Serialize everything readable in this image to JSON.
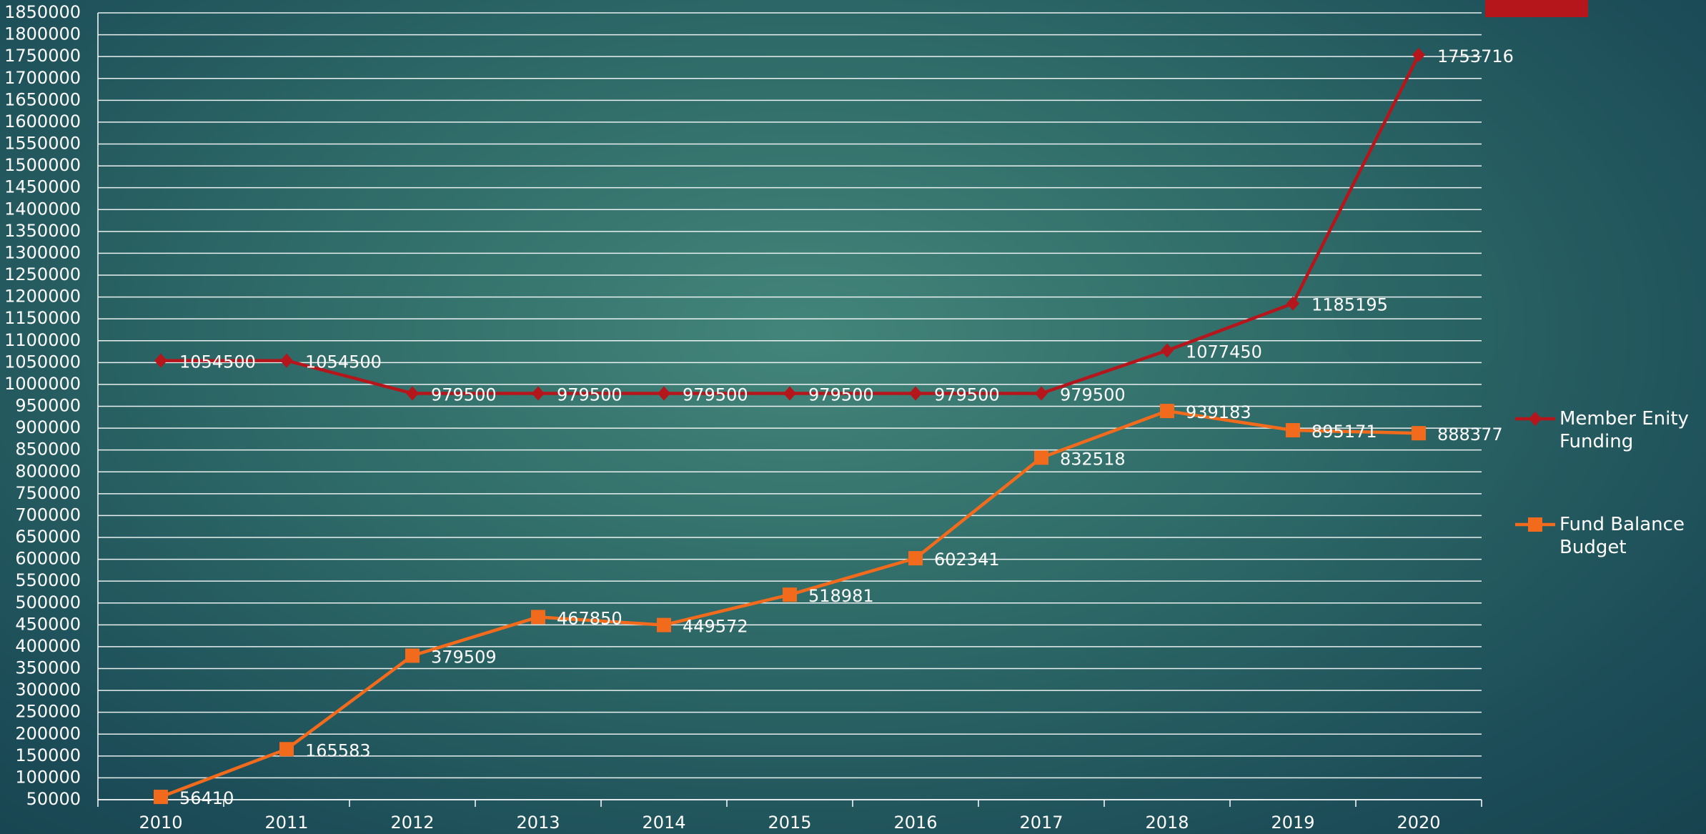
{
  "chart_data": {
    "type": "line",
    "categories": [
      "2010",
      "2011",
      "2012",
      "2013",
      "2014",
      "2015",
      "2016",
      "2017",
      "2018",
      "2019",
      "2020"
    ],
    "series": [
      {
        "name": "Member Enity Funding",
        "color": "#b5161c",
        "marker": "diamond",
        "values": [
          1054500,
          1054500,
          979500,
          979500,
          979500,
          979500,
          979500,
          979500,
          1077450,
          1185195,
          1753716
        ]
      },
      {
        "name": "Fund Balance Budget",
        "color": "#f26b1d",
        "marker": "square",
        "values": [
          56410,
          165583,
          379509,
          467850,
          449572,
          518981,
          602341,
          832518,
          939183,
          895171,
          888377
        ]
      }
    ],
    "ylim": [
      50000,
      1850000
    ],
    "yticks": [
      50000,
      100000,
      150000,
      200000,
      250000,
      300000,
      350000,
      400000,
      450000,
      500000,
      550000,
      600000,
      650000,
      700000,
      750000,
      800000,
      850000,
      900000,
      950000,
      1000000,
      1050000,
      1100000,
      1150000,
      1200000,
      1250000,
      1300000,
      1350000,
      1400000,
      1450000,
      1500000,
      1550000,
      1600000,
      1650000,
      1700000,
      1750000,
      1800000,
      1850000
    ],
    "grid": true,
    "legend": "right"
  }
}
